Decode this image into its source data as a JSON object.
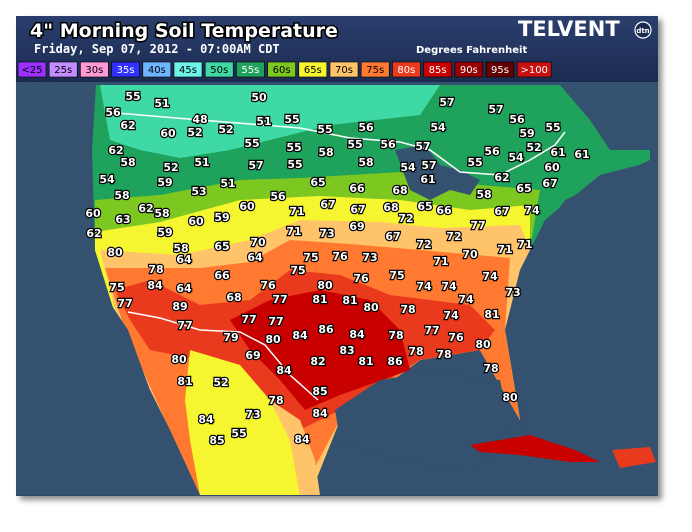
{
  "header": {
    "title": "4\" Morning Soil Temperature",
    "subtitle": "Friday, Sep 07, 2012 - 07:00AM CDT",
    "units": "Degrees Fahrenheit",
    "logo": "TELVENT",
    "logo_badge": "dtn"
  },
  "legend": [
    {
      "label": "<25",
      "color": "#9b30ff"
    },
    {
      "label": "25s",
      "color": "#c58cff"
    },
    {
      "label": "30s",
      "color": "#ff9ad6"
    },
    {
      "label": "35s",
      "color": "#3030ff"
    },
    {
      "label": "40s",
      "color": "#6fb4ff"
    },
    {
      "label": "45s",
      "color": "#6cf5e8"
    },
    {
      "label": "50s",
      "color": "#3fd9a6"
    },
    {
      "label": "55s",
      "color": "#1fa25c"
    },
    {
      "label": "60s",
      "color": "#7cc820"
    },
    {
      "label": "65s",
      "color": "#f6f630"
    },
    {
      "label": "70s",
      "color": "#ffc469"
    },
    {
      "label": "75s",
      "color": "#ff7a30"
    },
    {
      "label": "80s",
      "color": "#e93a1e"
    },
    {
      "label": "85s",
      "color": "#c80000"
    },
    {
      "label": "90s",
      "color": "#960000"
    },
    {
      "label": "95s",
      "color": "#640000"
    },
    {
      "label": ">100",
      "color": "#c81010"
    }
  ],
  "stations": [
    55,
    51,
    50,
    57,
    56,
    62,
    60,
    48,
    52,
    52,
    51,
    55,
    55,
    56,
    54,
    57,
    56,
    59,
    55,
    62,
    58,
    52,
    51,
    55,
    55,
    58,
    55,
    56,
    57,
    56,
    54,
    52,
    61,
    61,
    54,
    59,
    53,
    51,
    57,
    55,
    58,
    54,
    57,
    55,
    60,
    58,
    65,
    56,
    66,
    68,
    61,
    58,
    62,
    65,
    67,
    60,
    63,
    62,
    58,
    60,
    59,
    60,
    71,
    67,
    67,
    68,
    72,
    65,
    66,
    67,
    74,
    62,
    59,
    58,
    65,
    70,
    71,
    73,
    69,
    73,
    67,
    72,
    72,
    77,
    71,
    71,
    80,
    64,
    75,
    75,
    76,
    70,
    71,
    78,
    64,
    66,
    80,
    76,
    75,
    74,
    75,
    84,
    64,
    68,
    76,
    77,
    81,
    81,
    80,
    74,
    74,
    74,
    73,
    77,
    89,
    78,
    74,
    77,
    77,
    77,
    84,
    86,
    84,
    78,
    77,
    76,
    81,
    79,
    80,
    83,
    80,
    78,
    78,
    86,
    81,
    80,
    69,
    82,
    84,
    78,
    81,
    52,
    85,
    80,
    78,
    84,
    84,
    73,
    55,
    85,
    84
  ]
}
